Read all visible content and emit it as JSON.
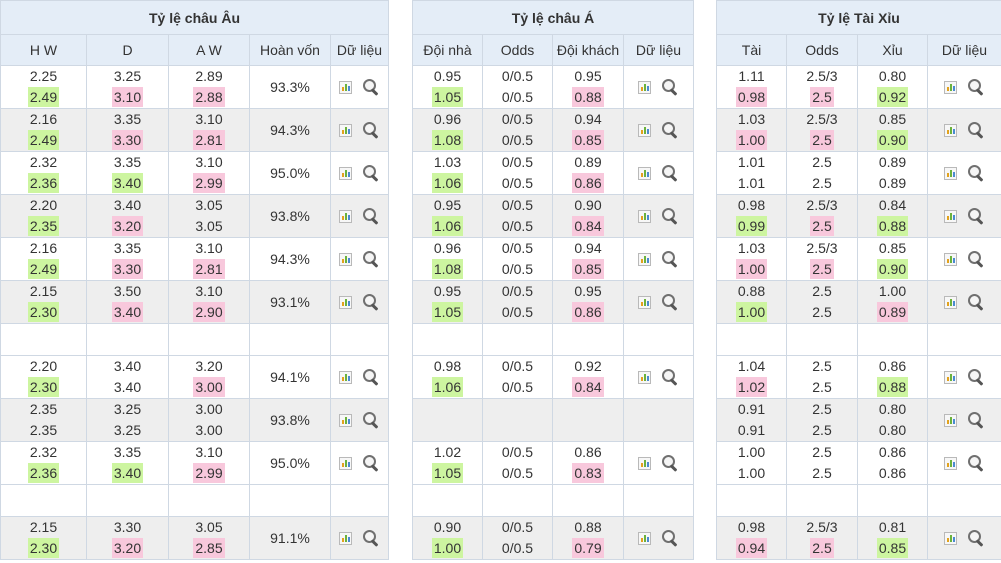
{
  "panels": {
    "eu": {
      "title": "Tỷ lệ châu Âu",
      "headers": [
        "H W",
        "D",
        "A W",
        "Hoàn vốn",
        "Dữ liệu"
      ],
      "rows": [
        {
          "c": [
            [
              [
                "2.25",
                ""
              ],
              [
                "2.49",
                "g"
              ]
            ],
            [
              [
                "3.25",
                ""
              ],
              [
                "3.10",
                "p"
              ]
            ],
            [
              [
                "2.89",
                ""
              ],
              [
                "2.88",
                "p"
              ]
            ]
          ],
          "ret": "93.3%"
        },
        {
          "c": [
            [
              [
                "2.16",
                ""
              ],
              [
                "2.49",
                "g"
              ]
            ],
            [
              [
                "3.35",
                ""
              ],
              [
                "3.30",
                "p"
              ]
            ],
            [
              [
                "3.10",
                ""
              ],
              [
                "2.81",
                "p"
              ]
            ]
          ],
          "ret": "94.3%"
        },
        {
          "c": [
            [
              [
                "2.32",
                ""
              ],
              [
                "2.36",
                "g"
              ]
            ],
            [
              [
                "3.35",
                ""
              ],
              [
                "3.40",
                "g"
              ]
            ],
            [
              [
                "3.10",
                ""
              ],
              [
                "2.99",
                "p"
              ]
            ]
          ],
          "ret": "95.0%"
        },
        {
          "c": [
            [
              [
                "2.20",
                ""
              ],
              [
                "2.35",
                "g"
              ]
            ],
            [
              [
                "3.40",
                ""
              ],
              [
                "3.20",
                "p"
              ]
            ],
            [
              [
                "3.05",
                ""
              ],
              [
                "3.05",
                ""
              ]
            ]
          ],
          "ret": "93.8%"
        },
        {
          "c": [
            [
              [
                "2.16",
                ""
              ],
              [
                "2.49",
                "g"
              ]
            ],
            [
              [
                "3.35",
                ""
              ],
              [
                "3.30",
                "p"
              ]
            ],
            [
              [
                "3.10",
                ""
              ],
              [
                "2.81",
                "p"
              ]
            ]
          ],
          "ret": "94.3%"
        },
        {
          "c": [
            [
              [
                "2.15",
                ""
              ],
              [
                "2.30",
                "g"
              ]
            ],
            [
              [
                "3.50",
                ""
              ],
              [
                "3.40",
                "p"
              ]
            ],
            [
              [
                "3.10",
                ""
              ],
              [
                "2.90",
                "p"
              ]
            ]
          ],
          "ret": "93.1%"
        },
        {
          "blank": true
        },
        {
          "c": [
            [
              [
                "2.20",
                ""
              ],
              [
                "2.30",
                "g"
              ]
            ],
            [
              [
                "3.40",
                ""
              ],
              [
                "3.40",
                ""
              ]
            ],
            [
              [
                "3.20",
                ""
              ],
              [
                "3.00",
                "p"
              ]
            ]
          ],
          "ret": "94.1%"
        },
        {
          "c": [
            [
              [
                "2.35",
                ""
              ],
              [
                "2.35",
                ""
              ]
            ],
            [
              [
                "3.25",
                ""
              ],
              [
                "3.25",
                ""
              ]
            ],
            [
              [
                "3.00",
                ""
              ],
              [
                "3.00",
                ""
              ]
            ]
          ],
          "ret": "93.8%"
        },
        {
          "c": [
            [
              [
                "2.32",
                ""
              ],
              [
                "2.36",
                "g"
              ]
            ],
            [
              [
                "3.35",
                ""
              ],
              [
                "3.40",
                "g"
              ]
            ],
            [
              [
                "3.10",
                ""
              ],
              [
                "2.99",
                "p"
              ]
            ]
          ],
          "ret": "95.0%"
        },
        {
          "blank": true
        },
        {
          "c": [
            [
              [
                "2.15",
                ""
              ],
              [
                "2.30",
                "g"
              ]
            ],
            [
              [
                "3.30",
                ""
              ],
              [
                "3.20",
                "p"
              ]
            ],
            [
              [
                "3.05",
                ""
              ],
              [
                "2.85",
                "p"
              ]
            ]
          ],
          "ret": "91.1%"
        }
      ]
    },
    "as": {
      "title": "Tỷ lệ châu Á",
      "headers": [
        "Đội nhà",
        "Odds",
        "Đội khách",
        "Dữ liệu"
      ],
      "rows": [
        {
          "c": [
            [
              [
                "0.95",
                ""
              ],
              [
                "1.05",
                "g"
              ]
            ],
            [
              [
                "0/0.5",
                ""
              ],
              [
                "0/0.5",
                ""
              ]
            ],
            [
              [
                "0.95",
                ""
              ],
              [
                "0.88",
                "p"
              ]
            ]
          ]
        },
        {
          "c": [
            [
              [
                "0.96",
                ""
              ],
              [
                "1.08",
                "g"
              ]
            ],
            [
              [
                "0/0.5",
                ""
              ],
              [
                "0/0.5",
                ""
              ]
            ],
            [
              [
                "0.94",
                ""
              ],
              [
                "0.85",
                "p"
              ]
            ]
          ]
        },
        {
          "c": [
            [
              [
                "1.03",
                ""
              ],
              [
                "1.06",
                "g"
              ]
            ],
            [
              [
                "0/0.5",
                ""
              ],
              [
                "0/0.5",
                ""
              ]
            ],
            [
              [
                "0.89",
                ""
              ],
              [
                "0.86",
                "p"
              ]
            ]
          ]
        },
        {
          "c": [
            [
              [
                "0.95",
                ""
              ],
              [
                "1.06",
                "g"
              ]
            ],
            [
              [
                "0/0.5",
                ""
              ],
              [
                "0/0.5",
                ""
              ]
            ],
            [
              [
                "0.90",
                ""
              ],
              [
                "0.84",
                "p"
              ]
            ]
          ]
        },
        {
          "c": [
            [
              [
                "0.96",
                ""
              ],
              [
                "1.08",
                "g"
              ]
            ],
            [
              [
                "0/0.5",
                ""
              ],
              [
                "0/0.5",
                ""
              ]
            ],
            [
              [
                "0.94",
                ""
              ],
              [
                "0.85",
                "p"
              ]
            ]
          ]
        },
        {
          "c": [
            [
              [
                "0.95",
                ""
              ],
              [
                "1.05",
                "g"
              ]
            ],
            [
              [
                "0/0.5",
                ""
              ],
              [
                "0/0.5",
                ""
              ]
            ],
            [
              [
                "0.95",
                ""
              ],
              [
                "0.86",
                "p"
              ]
            ]
          ]
        },
        {
          "blank": true
        },
        {
          "c": [
            [
              [
                "0.98",
                ""
              ],
              [
                "1.06",
                "g"
              ]
            ],
            [
              [
                "0/0.5",
                ""
              ],
              [
                "0/0.5",
                ""
              ]
            ],
            [
              [
                "0.92",
                ""
              ],
              [
                "0.84",
                "p"
              ]
            ]
          ]
        },
        {
          "empty": true
        },
        {
          "c": [
            [
              [
                "1.02",
                ""
              ],
              [
                "1.05",
                "g"
              ]
            ],
            [
              [
                "0/0.5",
                ""
              ],
              [
                "0/0.5",
                ""
              ]
            ],
            [
              [
                "0.86",
                ""
              ],
              [
                "0.83",
                "p"
              ]
            ]
          ]
        },
        {
          "blank": true
        },
        {
          "c": [
            [
              [
                "0.90",
                ""
              ],
              [
                "1.00",
                "g"
              ]
            ],
            [
              [
                "0/0.5",
                ""
              ],
              [
                "0/0.5",
                ""
              ]
            ],
            [
              [
                "0.88",
                ""
              ],
              [
                "0.79",
                "p"
              ]
            ]
          ]
        }
      ]
    },
    "ou": {
      "title": "Tỷ lệ Tài Xỉu",
      "headers": [
        "Tài",
        "Odds",
        "Xỉu",
        "Dữ liệu"
      ],
      "rows": [
        {
          "c": [
            [
              [
                "1.11",
                ""
              ],
              [
                "0.98",
                "p"
              ]
            ],
            [
              [
                "2.5/3",
                ""
              ],
              [
                "2.5",
                "p"
              ]
            ],
            [
              [
                "0.80",
                ""
              ],
              [
                "0.92",
                "g"
              ]
            ]
          ]
        },
        {
          "c": [
            [
              [
                "1.03",
                ""
              ],
              [
                "1.00",
                "p"
              ]
            ],
            [
              [
                "2.5/3",
                ""
              ],
              [
                "2.5",
                "p"
              ]
            ],
            [
              [
                "0.85",
                ""
              ],
              [
                "0.90",
                "g"
              ]
            ]
          ]
        },
        {
          "c": [
            [
              [
                "1.01",
                ""
              ],
              [
                "1.01",
                ""
              ]
            ],
            [
              [
                "2.5",
                ""
              ],
              [
                "2.5",
                ""
              ]
            ],
            [
              [
                "0.89",
                ""
              ],
              [
                "0.89",
                ""
              ]
            ]
          ]
        },
        {
          "c": [
            [
              [
                "0.98",
                ""
              ],
              [
                "0.99",
                "g"
              ]
            ],
            [
              [
                "2.5/3",
                ""
              ],
              [
                "2.5",
                "p"
              ]
            ],
            [
              [
                "0.84",
                ""
              ],
              [
                "0.88",
                "g"
              ]
            ]
          ]
        },
        {
          "c": [
            [
              [
                "1.03",
                ""
              ],
              [
                "1.00",
                "p"
              ]
            ],
            [
              [
                "2.5/3",
                ""
              ],
              [
                "2.5",
                "p"
              ]
            ],
            [
              [
                "0.85",
                ""
              ],
              [
                "0.90",
                "g"
              ]
            ]
          ]
        },
        {
          "c": [
            [
              [
                "0.88",
                ""
              ],
              [
                "1.00",
                "g"
              ]
            ],
            [
              [
                "2.5",
                ""
              ],
              [
                "2.5",
                ""
              ]
            ],
            [
              [
                "1.00",
                ""
              ],
              [
                "0.89",
                "p"
              ]
            ]
          ]
        },
        {
          "blank": true
        },
        {
          "c": [
            [
              [
                "1.04",
                ""
              ],
              [
                "1.02",
                "p"
              ]
            ],
            [
              [
                "2.5",
                ""
              ],
              [
                "2.5",
                ""
              ]
            ],
            [
              [
                "0.86",
                ""
              ],
              [
                "0.88",
                "g"
              ]
            ]
          ]
        },
        {
          "c": [
            [
              [
                "0.91",
                ""
              ],
              [
                "0.91",
                ""
              ]
            ],
            [
              [
                "2.5",
                ""
              ],
              [
                "2.5",
                ""
              ]
            ],
            [
              [
                "0.80",
                ""
              ],
              [
                "0.80",
                ""
              ]
            ]
          ]
        },
        {
          "c": [
            [
              [
                "1.00",
                ""
              ],
              [
                "1.00",
                ""
              ]
            ],
            [
              [
                "2.5",
                ""
              ],
              [
                "2.5",
                ""
              ]
            ],
            [
              [
                "0.86",
                ""
              ],
              [
                "0.86",
                ""
              ]
            ]
          ]
        },
        {
          "blank": true
        },
        {
          "c": [
            [
              [
                "0.98",
                ""
              ],
              [
                "0.94",
                "p"
              ]
            ],
            [
              [
                "2.5/3",
                ""
              ],
              [
                "2.5",
                "p"
              ]
            ],
            [
              [
                "0.81",
                ""
              ],
              [
                "0.85",
                "g"
              ]
            ]
          ]
        }
      ]
    }
  },
  "icons": {
    "chart": "bar-chart-icon",
    "search": "magnifier-icon"
  },
  "colors": {
    "header_bg": "#e4edf7",
    "alt_row": "#eeeeee",
    "up_highlight": "#cdf5a0",
    "down_highlight": "#f8c8dc",
    "border": "#cfd8e3"
  }
}
